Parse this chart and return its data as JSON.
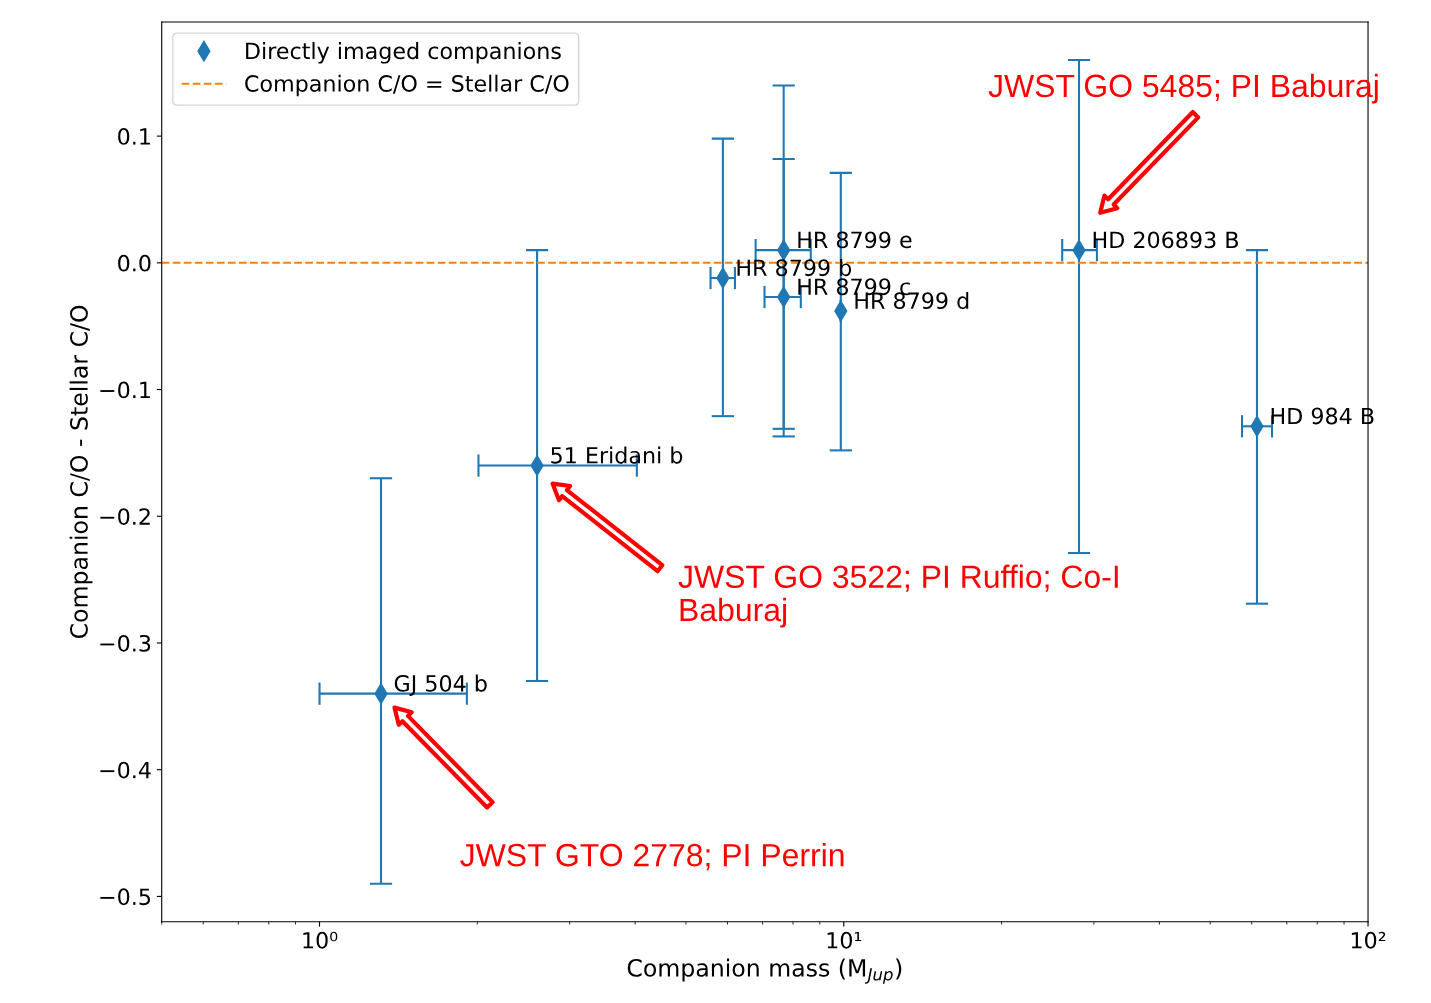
{
  "chart_data": {
    "type": "scatter",
    "xlabel": "Companion mass (M$_{Jup}$)",
    "ylabel": "Companion C/O - Stellar C/O",
    "log": "x",
    "xlim": [
      0.5,
      100
    ],
    "xticks": [
      {
        "value": 1,
        "label": "10⁰"
      },
      {
        "value": 10,
        "label": "10¹"
      },
      {
        "value": 100,
        "label": "10²"
      }
    ],
    "ylim": [
      -0.52,
      0.19
    ],
    "yticks": [
      {
        "value": 0.1,
        "label": "0.1"
      },
      {
        "value": 0.0,
        "label": "0.0"
      },
      {
        "value": -0.1,
        "label": "−0.1"
      },
      {
        "value": -0.2,
        "label": "−0.2"
      },
      {
        "value": -0.3,
        "label": "−0.3"
      },
      {
        "value": -0.4,
        "label": "−0.4"
      },
      {
        "value": -0.5,
        "label": "−0.5"
      }
    ],
    "grid": false,
    "legend": "top left",
    "marker": "diamond",
    "series": [
      {
        "name": "Directly imaged companions",
        "color": "#1f77b4",
        "x": [
          1.31,
          2.6,
          5.88,
          7.68,
          7.68,
          9.87,
          28.1,
          61.4
        ],
        "values": [
          -0.34,
          -0.16,
          -0.012,
          0.01,
          -0.027,
          -0.038,
          0.01,
          -0.129
        ],
        "errors": [
          [
            -0.49,
            -0.17
          ],
          [
            -0.33,
            0.01
          ],
          [
            -0.121,
            0.098
          ],
          [
            -0.137,
            0.14
          ],
          [
            -0.131,
            0.082
          ],
          [
            -0.148,
            0.071
          ],
          [
            -0.229,
            0.16
          ],
          [
            -0.269,
            0.01
          ]
        ],
        "xerrors": [
          [
            1.0,
            1.91
          ],
          [
            2.01,
            4.03
          ],
          [
            5.57,
            6.2
          ],
          [
            6.79,
            8.65
          ],
          [
            7.06,
            8.28
          ],
          null,
          [
            26.1,
            30.4
          ],
          [
            57.5,
            65.6
          ]
        ]
      }
    ],
    "ref_lines": [
      {
        "axis": "y",
        "value": 0,
        "label": "Companion C/O = Stellar C/O",
        "color": "#ff7f0e",
        "line_style": "dashed"
      }
    ],
    "annotations": [
      {
        "text": "GJ 504 b",
        "x": 1.31,
        "y": -0.34
      },
      {
        "text": "51 Eridani b",
        "x": 2.6,
        "y": -0.16
      },
      {
        "text": "HR 8799 b",
        "x": 5.88,
        "y": -0.012
      },
      {
        "text": "HR 8799 e",
        "x": 7.68,
        "y": 0.01
      },
      {
        "text": "HR 8799 c",
        "x": 7.68,
        "y": -0.027
      },
      {
        "text": "HR 8799 d",
        "x": 9.87,
        "y": -0.038
      },
      {
        "text": "HD 206893 B",
        "x": 28.1,
        "y": 0.01
      },
      {
        "text": "HD 984 B",
        "x": 61.4,
        "y": -0.129
      },
      "JWST GTO 2778; PI Perrin",
      "JWST GO 3522; PI Ruffio; Co-I\nBaburaj",
      "JWST GO 5485; PI Baburaj"
    ]
  }
}
